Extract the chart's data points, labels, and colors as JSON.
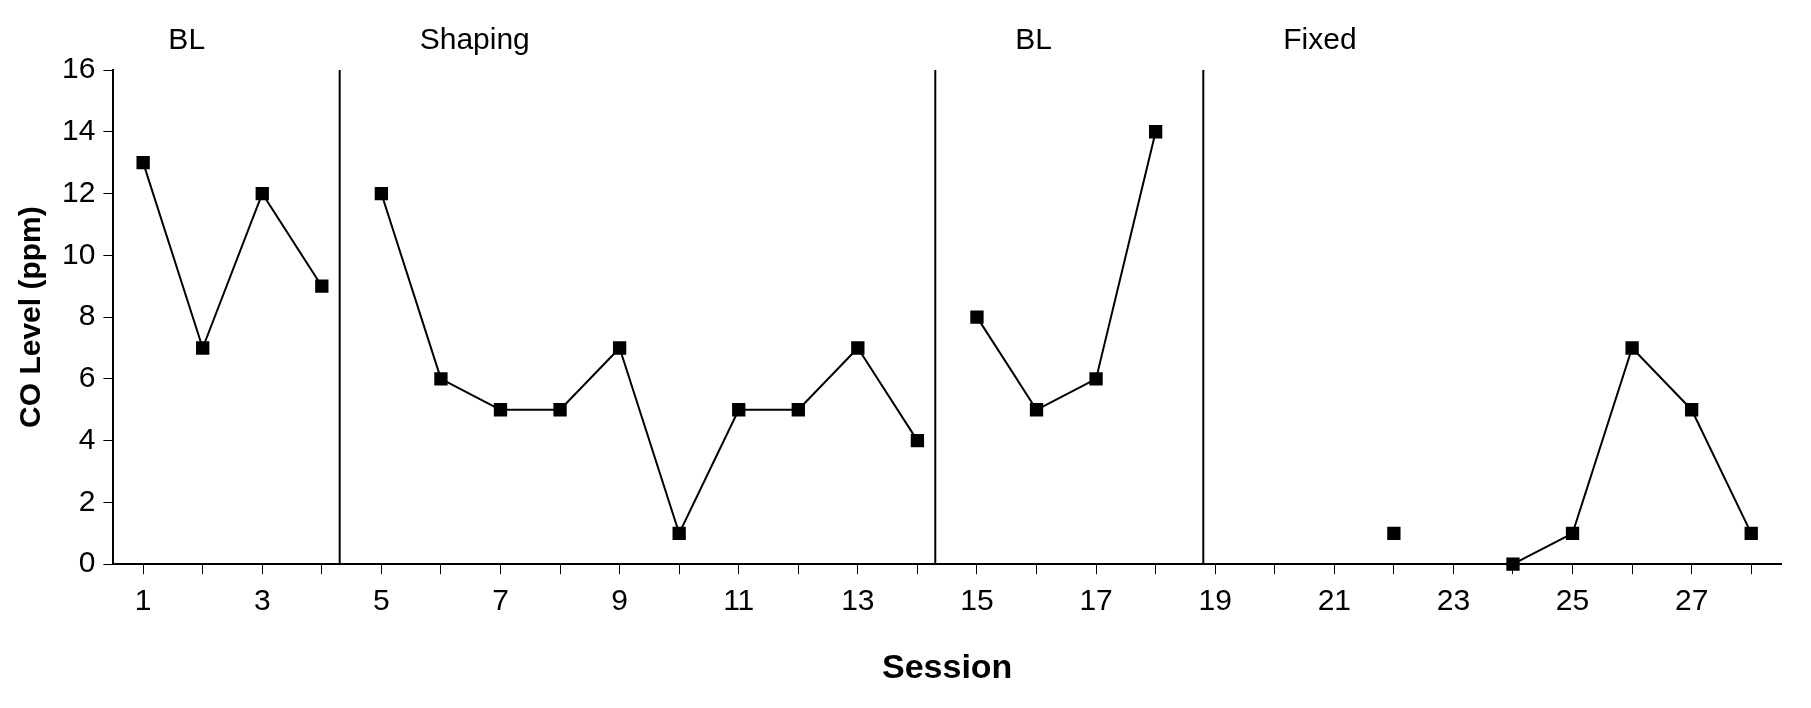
{
  "chart_data": {
    "type": "line",
    "xlabel": "Session",
    "ylabel": "CO Level (ppm)",
    "annotations": [
      "BL"
    ],
    "series": [
      {
        "color": "#000000",
        "x": [
          1,
          2,
          3,
          4
        ],
        "values": [
          13,
          7,
          12,
          9
        ]
      },
      {
        "color": "#000000",
        "x": [
          5,
          6,
          7,
          8,
          9,
          10,
          11,
          12,
          13,
          14
        ],
        "values": [
          12,
          6,
          5,
          5,
          7,
          1,
          5,
          5,
          7,
          4
        ]
      },
      {
        "color": "#000000",
        "x": [
          15,
          16,
          17,
          18
        ],
        "values": [
          8,
          5,
          6,
          14
        ]
      },
      {
        "color": "#000000",
        "x": [
          22,
          23,
          24,
          25,
          26,
          27,
          28
        ],
        "values": [
          1,
          null,
          0,
          1,
          7,
          5,
          1
        ]
      }
    ],
    "ref_lines": [
      {
        "axis": "x",
        "value": 4.3,
        "label": "Shaping",
        "color": "#000000"
      },
      {
        "axis": "x",
        "value": 14.3,
        "label": "BL",
        "color": "#000000"
      },
      {
        "axis": "x",
        "value": 18.8,
        "label": "Fixed",
        "color": "#000000"
      }
    ],
    "xlim": [
      0.5,
      28.5
    ],
    "xticks": [
      1,
      {
        "value": 2,
        "label": null
      },
      3,
      {
        "value": 4,
        "label": null
      },
      5,
      {
        "value": 6,
        "label": null
      },
      7,
      {
        "value": 8,
        "label": null
      },
      9,
      {
        "value": 10,
        "label": null
      },
      11,
      {
        "value": 12,
        "label": null
      },
      13,
      {
        "value": 14,
        "label": null
      },
      15,
      {
        "value": 16,
        "label": null
      },
      17,
      {
        "value": 18,
        "label": null
      },
      19,
      {
        "value": 20,
        "label": null
      },
      21,
      {
        "value": 22,
        "label": null
      },
      23,
      {
        "value": 24,
        "label": null
      },
      25,
      {
        "value": 26,
        "label": null
      },
      27,
      {
        "value": 28,
        "label": null
      }
    ],
    "ylim": [
      0,
      16
    ],
    "yticks": [
      0,
      2,
      4,
      6,
      8,
      10,
      12,
      14,
      16
    ],
    "grid": false,
    "legend": false,
    "marker": "square",
    "line_style": "solid"
  }
}
